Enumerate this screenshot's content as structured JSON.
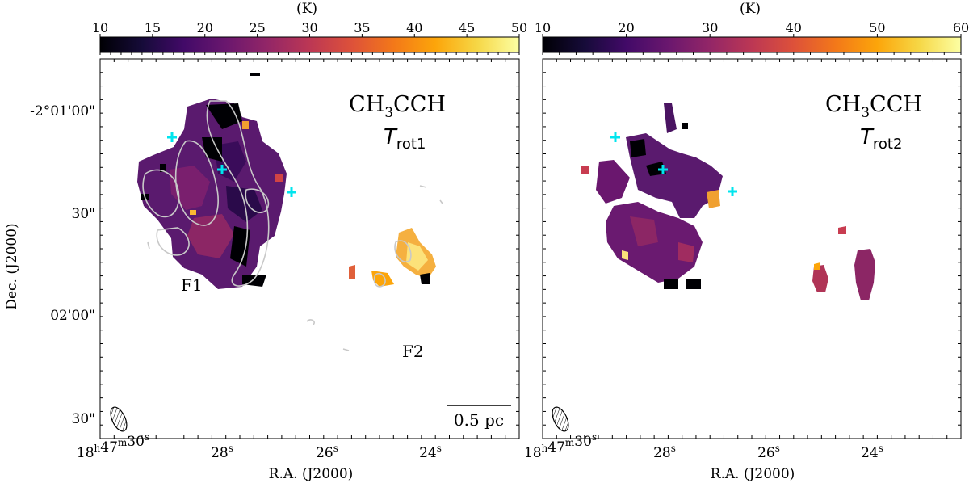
{
  "panels": [
    {
      "name": "rot1",
      "colorbar": {
        "unit": "(K)",
        "ticks": [
          "10",
          "15",
          "20",
          "25",
          "30",
          "35",
          "40",
          "45",
          "50"
        ],
        "min": 10,
        "max": 50
      },
      "title_main": "CH",
      "title_sub3": "3",
      "title_main2": "CCH",
      "title_T": "T",
      "title_T_sub": "rot1",
      "region_labels": [
        "F1",
        "F2"
      ],
      "scalebar": "0.5 pc",
      "ylabel": "Dec. (J2000)",
      "yticks": [
        "-2°01'00\"",
        "30\"",
        "02'00\"",
        "30\""
      ],
      "xlabel": "R.A. (J2000)",
      "xticks": [
        {
          "h": "18",
          "hsup": "h",
          "m": "47",
          "msup": "m",
          "s": "30",
          "ssup": "s"
        },
        {
          "s": "28",
          "ssup": "s"
        },
        {
          "s": "26",
          "ssup": "s"
        },
        {
          "s": "24",
          "ssup": "s"
        }
      ]
    },
    {
      "name": "rot2",
      "colorbar": {
        "unit": "(K)",
        "ticks": [
          "10",
          "20",
          "30",
          "40",
          "50",
          "60"
        ],
        "min": 10,
        "max": 60
      },
      "title_main": "CH",
      "title_sub3": "3",
      "title_main2": "CCH",
      "title_T": "T",
      "title_T_sub": "rot2",
      "xlabel": "R.A. (J2000)",
      "xticks": [
        {
          "h": "18",
          "hsup": "h",
          "m": "47",
          "msup": "m",
          "s": "30",
          "ssup": "s"
        },
        {
          "s": "28",
          "ssup": "s"
        },
        {
          "s": "26",
          "ssup": "s"
        },
        {
          "s": "24",
          "ssup": "s"
        }
      ]
    }
  ],
  "colors": {
    "markers": "#00e5ee",
    "contours": "#c8c8c8",
    "colormap": "inferno"
  },
  "chart_data": [
    {
      "type": "heatmap",
      "colormap": "inferno",
      "value_range": [
        10,
        50
      ],
      "unit": "K",
      "xaxis": {
        "label": "R.A. (J2000)",
        "ticks": [
          "18h47m30s",
          "28s",
          "26s",
          "24s"
        ]
      },
      "yaxis": {
        "label": "Dec. (J2000)",
        "ticks": [
          "-2°01'00\"",
          "30\"",
          "02'00\"",
          "30\""
        ]
      },
      "annotations": [
        "CH3CCH",
        "T_rot1",
        "F1",
        "F2",
        "0.5 pc"
      ],
      "markers": 3,
      "contours": true
    },
    {
      "type": "heatmap",
      "colormap": "inferno",
      "value_range": [
        10,
        60
      ],
      "unit": "K",
      "xaxis": {
        "label": "R.A. (J2000)",
        "ticks": [
          "18h47m30s",
          "28s",
          "26s",
          "24s"
        ]
      },
      "annotations": [
        "CH3CCH",
        "T_rot2"
      ],
      "markers": 3,
      "contours": false
    }
  ]
}
